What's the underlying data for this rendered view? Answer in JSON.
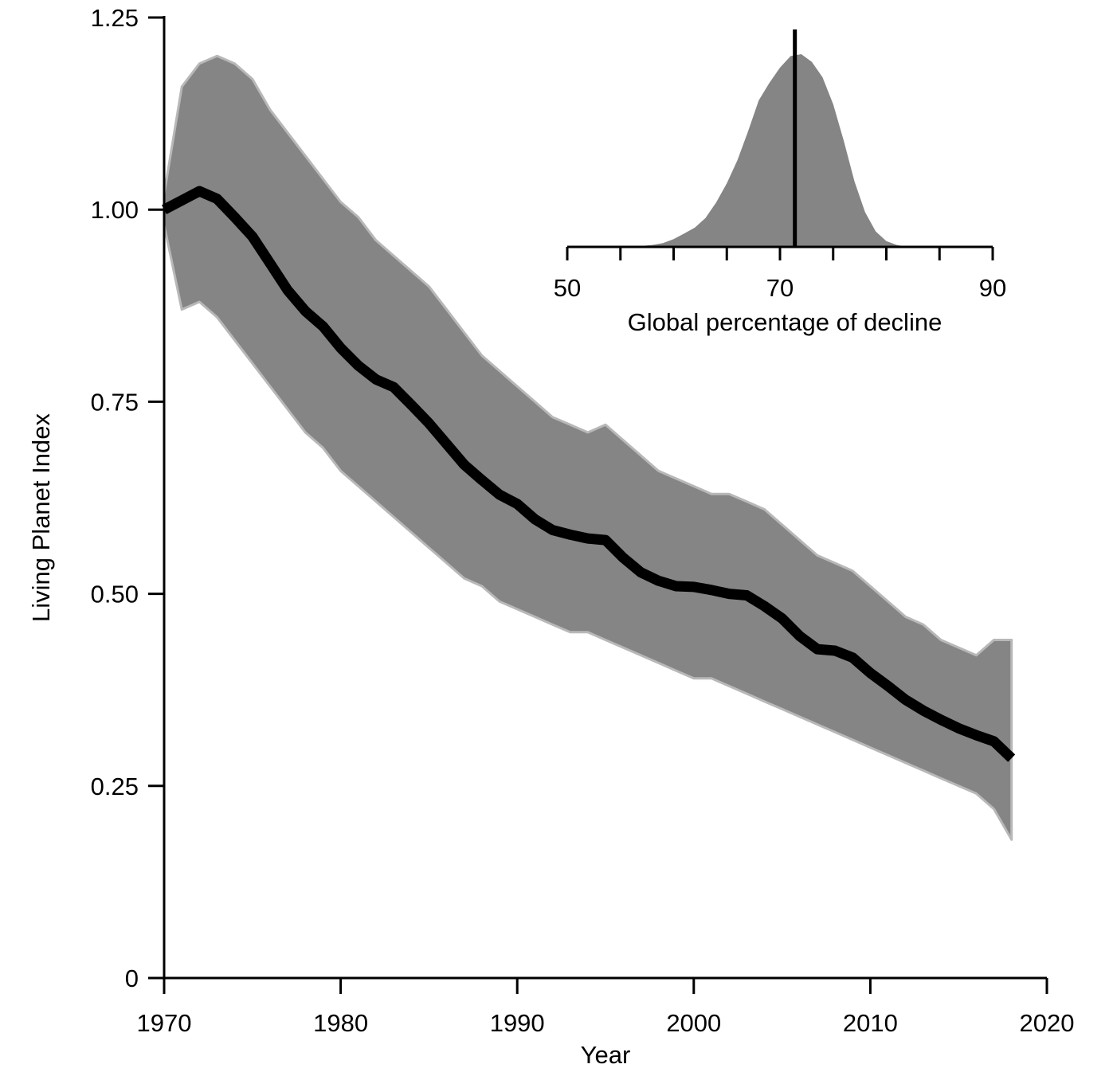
{
  "chart_data": [
    {
      "type": "line",
      "title": "",
      "xlabel": "Year",
      "ylabel": "Living Planet Index",
      "xlim": [
        1970,
        2020
      ],
      "ylim": [
        0,
        1.25
      ],
      "x_ticks": [
        1970,
        1980,
        1990,
        2000,
        2010,
        2020
      ],
      "x_tick_labels": [
        "1970",
        "1980",
        "1990",
        "2000",
        "2010",
        "2020"
      ],
      "y_ticks": [
        0,
        0.25,
        0.5,
        0.75,
        1.0,
        1.25
      ],
      "y_tick_labels": [
        "0",
        "0.25",
        "0.50",
        "0.75",
        "1.00",
        "1.25"
      ],
      "grid": false,
      "series": [
        {
          "x": [
            1970,
            1971,
            1972,
            1973,
            1974,
            1975,
            1976,
            1977,
            1978,
            1979,
            1980,
            1981,
            1982,
            1983,
            1984,
            1985,
            1986,
            1987,
            1988,
            1989,
            1990,
            1991,
            1992,
            1993,
            1994,
            1995,
            1996,
            1997,
            1998,
            1999,
            2000,
            2001,
            2002,
            2003,
            2004,
            2005,
            2006,
            2007,
            2008,
            2009,
            2010,
            2011,
            2012,
            2013,
            2014,
            2015,
            2016,
            2017,
            2018
          ],
          "values": [
            1.0,
            1.012,
            1.024,
            1.014,
            0.99,
            0.965,
            0.93,
            0.895,
            0.868,
            0.848,
            0.82,
            0.797,
            0.779,
            0.769,
            0.746,
            0.722,
            0.695,
            0.668,
            0.648,
            0.629,
            0.617,
            0.597,
            0.583,
            0.577,
            0.572,
            0.57,
            0.547,
            0.528,
            0.517,
            0.51,
            0.509,
            0.505,
            0.5,
            0.498,
            0.484,
            0.468,
            0.445,
            0.428,
            0.426,
            0.417,
            0.397,
            0.38,
            0.362,
            0.348,
            0.336,
            0.325,
            0.316,
            0.308,
            0.286
          ],
          "color": "#000000"
        }
      ],
      "band": {
        "upper": [
          1.02,
          1.16,
          1.19,
          1.2,
          1.19,
          1.17,
          1.13,
          1.1,
          1.07,
          1.04,
          1.01,
          0.99,
          0.96,
          0.94,
          0.92,
          0.9,
          0.87,
          0.84,
          0.81,
          0.79,
          0.77,
          0.75,
          0.73,
          0.72,
          0.71,
          0.72,
          0.7,
          0.68,
          0.66,
          0.65,
          0.64,
          0.63,
          0.63,
          0.62,
          0.61,
          0.59,
          0.57,
          0.55,
          0.54,
          0.53,
          0.51,
          0.49,
          0.47,
          0.46,
          0.44,
          0.43,
          0.42,
          0.44,
          0.44
        ],
        "lower": [
          0.98,
          0.87,
          0.88,
          0.86,
          0.83,
          0.8,
          0.77,
          0.74,
          0.71,
          0.69,
          0.66,
          0.64,
          0.62,
          0.6,
          0.58,
          0.56,
          0.54,
          0.52,
          0.51,
          0.49,
          0.48,
          0.47,
          0.46,
          0.45,
          0.45,
          0.44,
          0.43,
          0.42,
          0.41,
          0.4,
          0.39,
          0.39,
          0.38,
          0.37,
          0.36,
          0.35,
          0.34,
          0.33,
          0.32,
          0.31,
          0.3,
          0.29,
          0.28,
          0.27,
          0.26,
          0.25,
          0.24,
          0.22,
          0.18
        ],
        "color": "#858585"
      }
    },
    {
      "type": "area",
      "title": "",
      "xlabel": "Global percentage of decline",
      "ylabel": "",
      "xlim": [
        50,
        90
      ],
      "x_ticks": [
        50,
        55,
        60,
        65,
        70,
        75,
        80,
        85,
        90
      ],
      "x_tick_labels": [
        "50",
        "",
        "",
        "",
        "70",
        "",
        "",
        "",
        "90"
      ],
      "density": {
        "x": [
          56,
          58,
          59,
          60,
          61,
          62,
          63,
          64,
          65,
          66,
          67,
          68,
          69,
          70,
          71,
          72,
          73,
          74,
          75,
          76,
          77,
          78,
          79,
          80,
          81,
          82
        ],
        "y": [
          0.0,
          0.01,
          0.02,
          0.04,
          0.07,
          0.1,
          0.15,
          0.23,
          0.33,
          0.45,
          0.6,
          0.76,
          0.85,
          0.93,
          0.99,
          1.0,
          0.96,
          0.88,
          0.74,
          0.55,
          0.34,
          0.18,
          0.08,
          0.03,
          0.01,
          0.0
        ]
      },
      "mean_line": 71.4,
      "color": "#858585"
    }
  ]
}
